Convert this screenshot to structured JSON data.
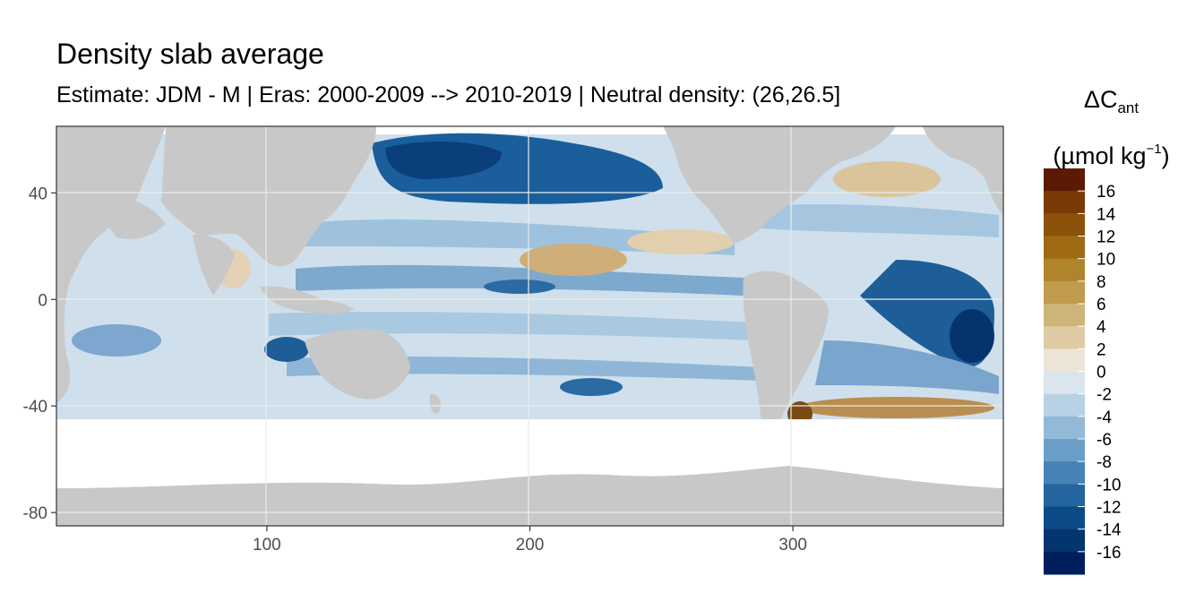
{
  "chart_data": {
    "type": "heatmap",
    "title": "Density slab average",
    "subtitle": "Estimate: JDM - M | Eras: 2000-2009 --> 2010-2019 | Neutral density: (26,26.5]",
    "x_ticks": [
      100,
      200,
      300
    ],
    "y_ticks": [
      40,
      0,
      -40,
      -80
    ],
    "xlim": [
      20,
      380
    ],
    "ylim": [
      -85,
      65
    ],
    "grid": true,
    "legend": {
      "placement": "right",
      "title_main": "ΔC",
      "title_sub": "ant",
      "unit_prefix": "(µmol kg",
      "unit_sup": "−1",
      "unit_suffix": ")",
      "breaks": [
        "16",
        "14",
        "12",
        "10",
        "8",
        "6",
        "4",
        "2",
        "0",
        "-2",
        "-4",
        "-6",
        "-8",
        "-10",
        "-12",
        "-14",
        "-16"
      ],
      "colors": [
        "#5c1a04",
        "#7a3a06",
        "#8c5209",
        "#9e6a12",
        "#b0842a",
        "#bf9a4f",
        "#cfb47a",
        "#dfcba3",
        "#ece4d6",
        "#dbe5ee",
        "#b8d2e5",
        "#92bad8",
        "#6b9fc9",
        "#4582b6",
        "#22659f",
        "#0d4b88",
        "#053570",
        "#001f5c"
      ]
    },
    "colors": {
      "land": "#c8c8c8",
      "no_data": "#ffffff",
      "grid": "#ebebeb",
      "border": "#333333"
    }
  }
}
